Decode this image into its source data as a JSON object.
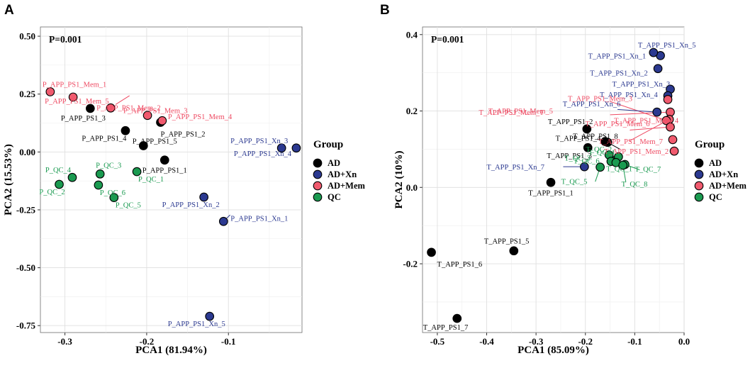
{
  "groups": [
    {
      "name": "AD",
      "color": "#000000"
    },
    {
      "name": "AD+Xn",
      "color": "#2B3990"
    },
    {
      "name": "AD+Mem",
      "color": "#F05A6E"
    },
    {
      "name": "QC",
      "color": "#1A9A50"
    }
  ],
  "label_colors": {
    "AD": "#000000",
    "AD+Xn": "#2B3990",
    "AD+Mem": "#EE4A62",
    "QC": "#1A9A50"
  },
  "chart_data": [
    {
      "panel": "A",
      "type": "scatter",
      "p_text": "P=0.001",
      "xlabel": "PCA1 (81.94%)",
      "ylabel": "PCA2 (15.53%)",
      "xlim": [
        -0.33,
        -0.01
      ],
      "ylim": [
        -0.78,
        0.54
      ],
      "xticks": [
        -0.3,
        -0.2,
        -0.1
      ],
      "xtick_labels": [
        "-0.3",
        "-0.2",
        "-0.1"
      ],
      "yticks": [
        0.5,
        0.25,
        0.0,
        -0.25,
        -0.5,
        -0.75
      ],
      "ytick_labels": [
        "0.50",
        "0.25",
        "0.00",
        "-0.25",
        "-0.50",
        "-0.75"
      ],
      "legend_title": "Group",
      "points": [
        {
          "name": "P_APP_PS1_1",
          "group": "AD",
          "x": -0.178,
          "y": -0.035
        },
        {
          "name": "P_APP_PS1_2",
          "group": "AD",
          "x": -0.183,
          "y": 0.128
        },
        {
          "name": "P_APP_PS1_3",
          "group": "AD",
          "x": -0.269,
          "y": 0.188
        },
        {
          "name": "P_APP_PS1_4",
          "group": "AD",
          "x": -0.226,
          "y": 0.092
        },
        {
          "name": "P_APP_PS1_5",
          "group": "AD",
          "x": -0.204,
          "y": 0.027
        },
        {
          "name": "P_APP_PS1_Xn_1",
          "group": "AD+Xn",
          "x": -0.106,
          "y": -0.3
        },
        {
          "name": "P_APP_PS1_Xn_2",
          "group": "AD+Xn",
          "x": -0.13,
          "y": -0.195
        },
        {
          "name": "P_APP_PS1_Xn_3",
          "group": "AD+Xn",
          "x": -0.035,
          "y": 0.017
        },
        {
          "name": "P_APP_PS1_Xn_4",
          "group": "AD+Xn",
          "x": -0.017,
          "y": 0.017
        },
        {
          "name": "P_APP_PS1_Xn_5",
          "group": "AD+Xn",
          "x": -0.123,
          "y": -0.71
        },
        {
          "name": "P_APP_PS1_Mem_1",
          "group": "AD+Mem",
          "x": -0.318,
          "y": 0.26
        },
        {
          "name": "P_APP_PS1_Mem_2",
          "group": "AD+Mem",
          "x": -0.244,
          "y": 0.19
        },
        {
          "name": "P_APP_PS1_Mem_3",
          "group": "AD+Mem",
          "x": -0.199,
          "y": 0.158
        },
        {
          "name": "P_APP_PS1_Mem_4",
          "group": "AD+Mem",
          "x": -0.181,
          "y": 0.135
        },
        {
          "name": "P_APP_PS1_Mem_5",
          "group": "AD+Mem",
          "x": -0.29,
          "y": 0.237
        },
        {
          "name": "P_QC_1",
          "group": "QC",
          "x": -0.212,
          "y": -0.085
        },
        {
          "name": "P_QC_2",
          "group": "QC",
          "x": -0.307,
          "y": -0.14
        },
        {
          "name": "P_QC_3",
          "group": "QC",
          "x": -0.257,
          "y": -0.095
        },
        {
          "name": "P_QC_4",
          "group": "QC",
          "x": -0.291,
          "y": -0.11
        },
        {
          "name": "P_QC_5",
          "group": "QC",
          "x": -0.24,
          "y": -0.197
        },
        {
          "name": "P_QC_6",
          "group": "QC",
          "x": -0.259,
          "y": -0.143
        }
      ]
    },
    {
      "panel": "B",
      "type": "scatter",
      "p_text": "P=0.001",
      "xlabel": "PCA1 (85.09%)",
      "ylabel": "PCA2 (10%)",
      "xlim": [
        -0.53,
        0.0
      ],
      "ylim": [
        -0.38,
        0.42
      ],
      "xticks": [
        -0.5,
        -0.4,
        -0.3,
        -0.2,
        -0.1,
        0.0
      ],
      "xtick_labels": [
        "-0.5",
        "-0.4",
        "-0.3",
        "-0.2",
        "-0.1",
        "0.0"
      ],
      "yticks": [
        0.4,
        0.2,
        0.0,
        -0.2
      ],
      "ytick_labels": [
        "0.4",
        "0.2",
        "0.0",
        "-0.2"
      ],
      "legend_title": "Group",
      "points": [
        {
          "name": "T_APP_PS1_1",
          "group": "AD",
          "x": -0.27,
          "y": 0.013
        },
        {
          "name": "T_APP_PS1_2",
          "group": "AD",
          "x": -0.197,
          "y": 0.153
        },
        {
          "name": "T_APP_PS1_3",
          "group": "AD",
          "x": -0.195,
          "y": 0.104
        },
        {
          "name": "T_APP_PS1_4",
          "group": "AD",
          "x": -0.16,
          "y": 0.12
        },
        {
          "name": "T_APP_PS1_5",
          "group": "AD",
          "x": -0.345,
          "y": -0.166
        },
        {
          "name": "T_APP_PS1_6",
          "group": "AD",
          "x": -0.512,
          "y": -0.17
        },
        {
          "name": "T_APP_PS1_7",
          "group": "AD",
          "x": -0.46,
          "y": -0.343
        },
        {
          "name": "T_APP_PS1_8",
          "group": "AD",
          "x": -0.155,
          "y": 0.118
        },
        {
          "name": "T_APP_PS1_Xn_1",
          "group": "AD+Xn",
          "x": -0.048,
          "y": 0.345
        },
        {
          "name": "T_APP_PS1_Xn_2",
          "group": "AD+Xn",
          "x": -0.053,
          "y": 0.311
        },
        {
          "name": "T_APP_PS1_Xn_3",
          "group": "AD+Xn",
          "x": -0.028,
          "y": 0.257
        },
        {
          "name": "T_APP_PS1_Xn_4",
          "group": "AD+Xn",
          "x": -0.033,
          "y": 0.24
        },
        {
          "name": "T_APP_PS1_Xn_5",
          "group": "AD+Xn",
          "x": -0.062,
          "y": 0.353
        },
        {
          "name": "T_APP_PS1_Xn_6",
          "group": "AD+Xn",
          "x": -0.055,
          "y": 0.197
        },
        {
          "name": "T_APP_PS1_Xn_7",
          "group": "AD+Xn",
          "x": -0.202,
          "y": 0.054
        },
        {
          "name": "T_APP_PS1_Mem_1",
          "group": "AD+Mem",
          "x": -0.028,
          "y": 0.197
        },
        {
          "name": "T_APP_PS1_Mem_2",
          "group": "AD+Mem",
          "x": -0.02,
          "y": 0.095
        },
        {
          "name": "T_APP_PS1_Mem_3",
          "group": "AD+Mem",
          "x": -0.033,
          "y": 0.23
        },
        {
          "name": "T_APP_PS1_Mem_4",
          "group": "AD+Mem",
          "x": -0.03,
          "y": 0.178
        },
        {
          "name": "T_APP_PS1_Mem_5",
          "group": "AD+Mem",
          "x": -0.036,
          "y": 0.175
        },
        {
          "name": "T_APP_PS1_Mem_6",
          "group": "AD+Mem",
          "x": -0.028,
          "y": 0.158
        },
        {
          "name": "T_APP_PS1_Mem_7",
          "group": "AD+Mem",
          "x": -0.023,
          "y": 0.125
        },
        {
          "name": "T_QC_1",
          "group": "QC",
          "x": -0.142,
          "y": 0.07
        },
        {
          "name": "T_QC_2",
          "group": "QC",
          "x": -0.133,
          "y": 0.08
        },
        {
          "name": "T_QC_3",
          "group": "QC",
          "x": -0.152,
          "y": 0.085
        },
        {
          "name": "T_QC_4",
          "group": "QC",
          "x": -0.148,
          "y": 0.068
        },
        {
          "name": "T_QC_5",
          "group": "QC",
          "x": -0.17,
          "y": 0.053
        },
        {
          "name": "T_QC_6",
          "group": "QC",
          "x": -0.138,
          "y": 0.065
        },
        {
          "name": "T_QC_7",
          "group": "QC",
          "x": -0.12,
          "y": 0.06
        },
        {
          "name": "T_QC_8",
          "group": "QC",
          "x": -0.124,
          "y": 0.058
        }
      ]
    }
  ]
}
